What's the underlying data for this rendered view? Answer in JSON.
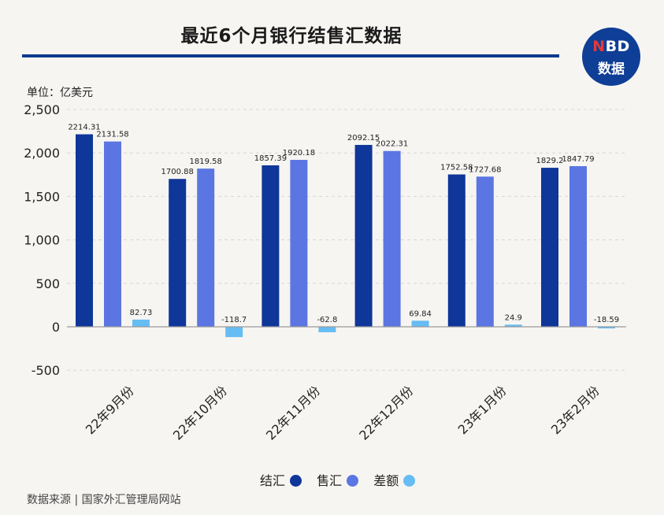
{
  "header": {
    "title": "最近6个月银行结售汇数据"
  },
  "logo": {
    "line1_n": "N",
    "line1_rest": "BD",
    "line2": "数据"
  },
  "unit_label": "单位：亿美元",
  "source_label": "数据来源 | 国家外汇管理局网站",
  "colors": {
    "jiehui": "#0f3699",
    "shouhui": "#5b76e2",
    "chae": "#66bdf3"
  },
  "chart_data": {
    "type": "bar",
    "title": "最近6个月银行结售汇数据",
    "xlabel": "",
    "ylabel": "单位：亿美元",
    "ylim": [
      -500,
      2500
    ],
    "yticks": [
      -500,
      0,
      500,
      1000,
      1500,
      2000,
      2500
    ],
    "ytick_labels": [
      "-500",
      "0",
      "500",
      "1,000",
      "1,500",
      "2,000",
      "2,500"
    ],
    "grid": true,
    "legend_position": "bottom",
    "categories": [
      "22年9月份",
      "22年10月份",
      "22年11月份",
      "22年12月份",
      "23年1月份",
      "23年2月份"
    ],
    "series": [
      {
        "name": "结汇",
        "values": [
          2214.31,
          1700.88,
          1857.39,
          2092.15,
          1752.58,
          1829.2
        ],
        "labels": [
          "2214.31",
          "1700.88",
          "1857.39",
          "2092.15",
          "1752.58",
          "1829.2"
        ]
      },
      {
        "name": "售汇",
        "values": [
          2131.58,
          1819.58,
          1920.18,
          2022.31,
          1727.68,
          1847.79
        ],
        "labels": [
          "2131.58",
          "1819.58",
          "1920.18",
          "2022.31",
          "1727.68",
          "1847.79"
        ]
      },
      {
        "name": "差额",
        "values": [
          82.73,
          -118.7,
          -62.8,
          69.84,
          24.9,
          -18.59
        ],
        "labels": [
          "82.73",
          "-118.7",
          "-62.8",
          "69.84",
          "24.9",
          "-18.59"
        ]
      }
    ]
  }
}
